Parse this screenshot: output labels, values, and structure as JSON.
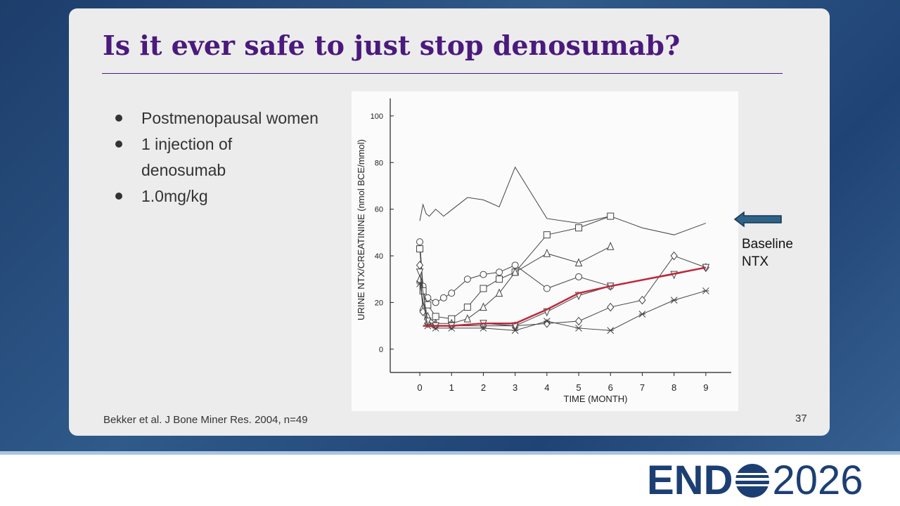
{
  "slide": {
    "title": "Is it ever safe to just stop denosumab?",
    "bullets": [
      "Postmenopausal women",
      "1 injection of denosumab",
      "1.0mg/kg"
    ],
    "citation": "Bekker et al. J Bone Miner Res. 2004, n=49",
    "page_number": "37",
    "annotation": [
      "Baseline",
      "NTX"
    ],
    "logo": {
      "left": "END",
      "right": "2026"
    }
  },
  "chart_data": {
    "type": "line",
    "x_label": "TIME (MONTH)",
    "y_label": "URINE NTX/CREATININE (nmol BCE/mmol)",
    "xlim": [
      -0.93,
      9.8
    ],
    "ylim": [
      -10,
      107.5
    ],
    "xticks": [
      0,
      1,
      2,
      3,
      4,
      5,
      6,
      7,
      8,
      9
    ],
    "yticks": [
      0,
      20,
      40,
      60,
      80,
      100
    ],
    "series": [
      {
        "marker": "none",
        "color": "#444444",
        "x": [
          0,
          0.1,
          0.2,
          0.3,
          0.5,
          0.75,
          1.5,
          2,
          2.5,
          3,
          4,
          5,
          6,
          7,
          8,
          9
        ],
        "values": [
          55,
          62,
          58,
          57,
          60,
          57,
          65,
          64,
          61,
          78,
          56,
          54,
          57,
          52,
          49,
          54
        ]
      },
      {
        "marker": "circle",
        "color": "#444444",
        "x": [
          0,
          0.1,
          0.25,
          0.5,
          0.75,
          1,
          1.5,
          2,
          2.5,
          3,
          4,
          5,
          6
        ],
        "values": [
          46,
          27,
          22,
          20,
          22,
          24,
          30,
          32,
          33,
          36,
          26,
          31,
          27
        ]
      },
      {
        "marker": "square",
        "color": "#444444",
        "x": [
          0,
          0.1,
          0.25,
          0.5,
          1,
          1.5,
          2,
          2.5,
          3,
          4,
          5,
          6
        ],
        "values": [
          43,
          25,
          19,
          14,
          13,
          18,
          26,
          30,
          33,
          49,
          52,
          57
        ]
      },
      {
        "marker": "triangle",
        "color": "#444444",
        "x": [
          0,
          0.1,
          0.25,
          0.5,
          1,
          1.5,
          2,
          2.5,
          3,
          4,
          5,
          6
        ],
        "values": [
          30,
          18,
          14,
          11,
          11,
          13,
          18,
          24,
          33,
          41,
          37,
          44
        ]
      },
      {
        "marker": "diamond",
        "color": "#444444",
        "x": [
          0,
          0.1,
          0.25,
          0.5,
          1,
          2,
          3,
          4,
          5,
          6,
          7,
          8,
          9
        ],
        "values": [
          36,
          16,
          11,
          10,
          10,
          10,
          10,
          11,
          12,
          18,
          21,
          40,
          35
        ]
      },
      {
        "marker": "triangle-down",
        "color": "#444444",
        "x": [
          0,
          0.25,
          0.5,
          1,
          2,
          3,
          4,
          5,
          6,
          8,
          9
        ],
        "values": [
          33,
          12,
          10,
          10,
          11,
          10,
          16,
          23,
          27,
          32,
          35
        ]
      },
      {
        "marker": "star",
        "color": "#444444",
        "x": [
          0,
          0.25,
          0.5,
          1,
          2,
          3,
          4,
          5,
          6,
          7,
          8,
          9
        ],
        "values": [
          28,
          10,
          9,
          9,
          9,
          8,
          12,
          9,
          8,
          15,
          21,
          25
        ]
      },
      {
        "marker": "none",
        "color": "#c0283c",
        "x": [
          0.1,
          1,
          2,
          3,
          4,
          5,
          6,
          9
        ],
        "values": [
          10,
          10,
          11,
          11,
          17,
          24,
          27,
          35
        ]
      }
    ]
  }
}
